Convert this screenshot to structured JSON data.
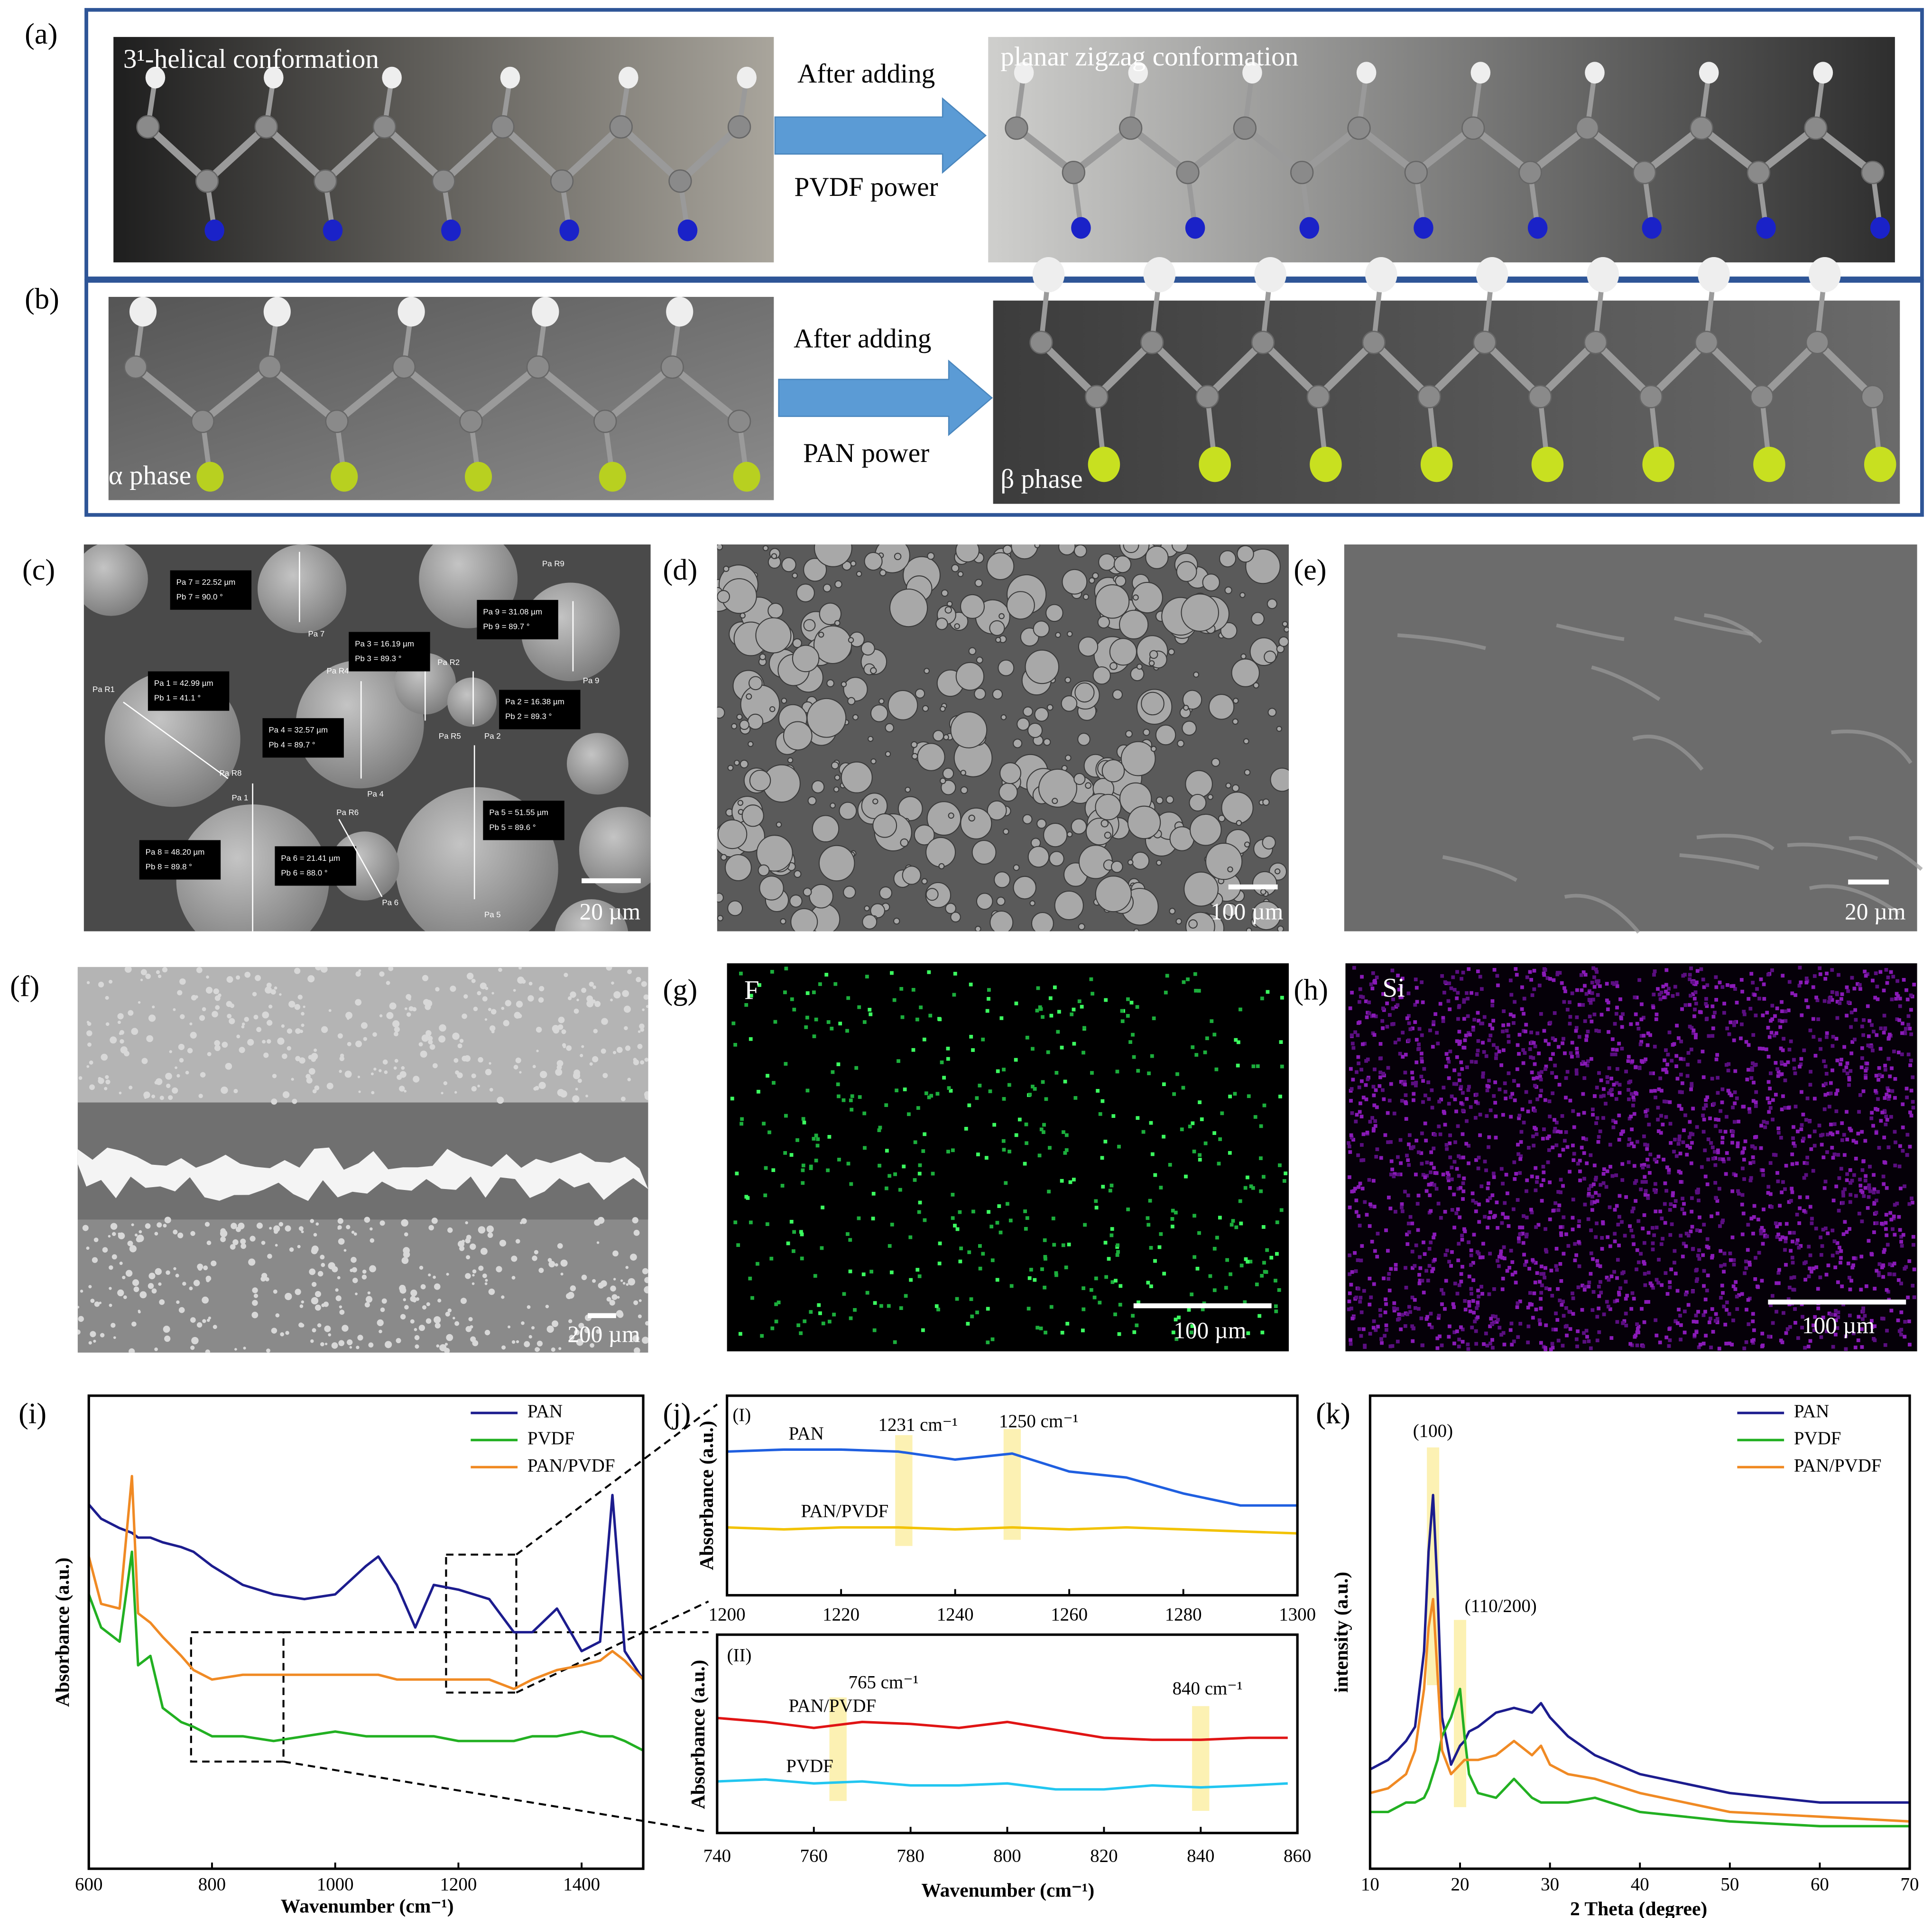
{
  "panels": {
    "a": {
      "label": "(a)",
      "left_caption": "3¹-helical conformation",
      "arrow_top": "After adding",
      "arrow_bottom": "PVDF power",
      "right_caption": "planar zigzag conformation"
    },
    "b": {
      "label": "(b)",
      "left_caption": "α phase",
      "arrow_top": "After adding",
      "arrow_bottom": "PAN power",
      "right_caption": "β phase"
    },
    "c": {
      "label": "(c)",
      "scale_bar": "20 µm",
      "measurements": [
        [
          "Pa 1 = 42.99 µm",
          "Pb 1 = 41.1 °"
        ],
        [
          "Pa 2 = 16.38 µm",
          "Pb 2 = 89.3 °"
        ],
        [
          "Pa 3 = 16.19 µm",
          "Pb 3 = 89.3 °"
        ],
        [
          "Pa 4 = 32.57 µm",
          "Pb 4 = 89.7 °"
        ],
        [
          "Pa 5 = 51.55 µm",
          "Pb 5 = 89.6 °"
        ],
        [
          "Pa 6 = 21.41 µm",
          "Pb 6 = 88.0 °"
        ],
        [
          "Pa 7 = 22.52 µm",
          "Pb 7 = 90.0 °"
        ],
        [
          "Pa 8 = 48.20 µm",
          "Pb 8 = 89.8 °"
        ],
        [
          "Pa 9 = 31.08 µm",
          "Pb 9 = 89.7 °"
        ]
      ],
      "markers": [
        "Pa R1",
        "Pa R8",
        "Pa 1",
        "Pa 7",
        "Pa R4",
        "Pa R2",
        "Pa R5",
        "Pa 2",
        "Pa 4",
        "Pa R6",
        "Pa 6",
        "Pa 5",
        "Pa 9",
        "Pa R9"
      ]
    },
    "d": {
      "label": "(d)",
      "scale_bar": "100 µm"
    },
    "e": {
      "label": "(e)",
      "scale_bar": "20 µm"
    },
    "f": {
      "label": "(f)",
      "scale_bar": "200 µm"
    },
    "g": {
      "label": "(g)",
      "element": "F",
      "scale_bar": "100 µm"
    },
    "h": {
      "label": "(h)",
      "element": "Si",
      "scale_bar": "100 µm"
    },
    "i": {
      "label": "(i)"
    },
    "j": {
      "label": "(j)"
    },
    "k": {
      "label": "(k)"
    }
  },
  "chart_data": [
    {
      "type": "line",
      "x_label": "Wavenumber (cm⁻¹)",
      "y_label": "Absorbance (a.u.)",
      "legend": "upper right",
      "xlim": [
        600,
        1500
      ],
      "xticks": [
        600,
        800,
        1000,
        1200,
        1400
      ],
      "ylim": [
        0,
        100
      ],
      "x": [
        600,
        620,
        650,
        670,
        680,
        700,
        720,
        750,
        770,
        800,
        850,
        900,
        950,
        1000,
        1050,
        1070,
        1100,
        1130,
        1160,
        1200,
        1250,
        1290,
        1320,
        1360,
        1400,
        1430,
        1450,
        1470,
        1500
      ],
      "series": [
        {
          "name": "PAN",
          "color": "#1c1c8e",
          "values": [
            77,
            74,
            72,
            71,
            70,
            70,
            69,
            68,
            67,
            64,
            60,
            58,
            57,
            58,
            64,
            66,
            60,
            51,
            60,
            59,
            57,
            50,
            50,
            55,
            46,
            48,
            79,
            46,
            40
          ]
        },
        {
          "name": "PVDF",
          "color": "#22b022",
          "values": [
            58,
            51,
            48,
            67,
            43,
            45,
            34,
            31,
            30,
            28,
            28,
            27,
            28,
            29,
            28,
            28,
            28,
            28,
            28,
            27,
            27,
            27,
            28,
            28,
            29,
            28,
            28,
            27,
            25
          ]
        },
        {
          "name": "PAN/PVDF",
          "color": "#f08a24",
          "values": [
            66,
            56,
            55,
            83,
            54,
            52,
            49,
            45,
            42,
            40,
            41,
            41,
            41,
            41,
            41,
            41,
            40,
            40,
            40,
            40,
            40,
            38,
            40,
            42,
            43,
            44,
            46,
            44,
            40
          ]
        }
      ]
    },
    {
      "type": "line",
      "subtitle": "(I)",
      "y_label": "Absorbance (a.u.)",
      "legend": "inline",
      "xlim": [
        1200,
        1300
      ],
      "xticks": [
        1200,
        1220,
        1240,
        1260,
        1280,
        1300
      ],
      "ylim": [
        0,
        100
      ],
      "x": [
        1200,
        1210,
        1220,
        1230,
        1240,
        1250,
        1260,
        1270,
        1280,
        1290,
        1300
      ],
      "series": [
        {
          "name": "PAN",
          "color": "#1f5fe0",
          "values": [
            72,
            73,
            73,
            72,
            68,
            71,
            62,
            59,
            51,
            45,
            45
          ]
        },
        {
          "name": "PAN/PVDF",
          "color": "#f2c200",
          "values": [
            34,
            33,
            34,
            34,
            33,
            34,
            33,
            34,
            33,
            32,
            31
          ]
        }
      ],
      "annotations": [
        {
          "text": "1231 cm⁻¹",
          "x": 1231
        },
        {
          "text": "1250 cm⁻¹",
          "x": 1250
        }
      ]
    },
    {
      "type": "line",
      "subtitle": "(II)",
      "x_label": "Wavenumber (cm⁻¹)",
      "y_label": "Absorbance (a.u.)",
      "legend": "inline",
      "xlim": [
        740,
        860
      ],
      "xticks": [
        740,
        760,
        780,
        800,
        820,
        840,
        860
      ],
      "ylim": [
        0,
        100
      ],
      "x": [
        740,
        750,
        760,
        770,
        780,
        790,
        800,
        810,
        820,
        830,
        840,
        850,
        858
      ],
      "series": [
        {
          "name": "PAN/PVDF",
          "color": "#e01414",
          "values": [
            58,
            56,
            53,
            56,
            55,
            53,
            56,
            52,
            48,
            47,
            47,
            48,
            48
          ]
        },
        {
          "name": "PVDF",
          "color": "#22c6f0",
          "values": [
            26,
            27,
            25,
            26,
            24,
            24,
            25,
            22,
            22,
            24,
            23,
            24,
            25
          ]
        }
      ],
      "annotations": [
        {
          "text": "765 cm⁻¹",
          "x": 765
        },
        {
          "text": "840 cm⁻¹",
          "x": 840
        }
      ]
    },
    {
      "type": "line",
      "x_label": "2 Theta (degree)",
      "y_label": "intensity (a.u.)",
      "legend": "upper right",
      "xlim": [
        10,
        70
      ],
      "xticks": [
        10,
        20,
        30,
        40,
        50,
        60,
        70
      ],
      "ylim": [
        0,
        100
      ],
      "x": [
        10,
        12,
        14,
        15,
        16,
        16.5,
        17,
        17.5,
        18,
        19,
        20,
        20.5,
        21,
        22,
        24,
        26,
        28,
        29,
        30,
        32,
        35,
        40,
        50,
        60,
        70
      ],
      "series": [
        {
          "name": "PAN",
          "color": "#1c1c8e",
          "values": [
            21,
            23,
            27,
            30,
            46,
            67,
            79,
            59,
            32,
            22,
            26,
            27,
            29,
            30,
            33,
            34,
            33,
            35,
            32,
            28,
            24,
            20,
            16,
            14,
            14
          ]
        },
        {
          "name": "PVDF",
          "color": "#22b022",
          "values": [
            12,
            12,
            14,
            14,
            15,
            17,
            20,
            23,
            28,
            32,
            38,
            28,
            20,
            16,
            15,
            19,
            15,
            14,
            14,
            14,
            15,
            12,
            10,
            9,
            9
          ]
        },
        {
          "name": "PAN/PVDF",
          "color": "#f08a24",
          "values": [
            16,
            17,
            20,
            25,
            38,
            51,
            57,
            41,
            25,
            20,
            22,
            23,
            23,
            23,
            24,
            27,
            24,
            26,
            22,
            20,
            19,
            16,
            12,
            11,
            10
          ]
        }
      ],
      "annotations": [
        {
          "text": "(100)",
          "x": 17
        },
        {
          "text": "(110/200)",
          "x": 20
        }
      ]
    }
  ]
}
